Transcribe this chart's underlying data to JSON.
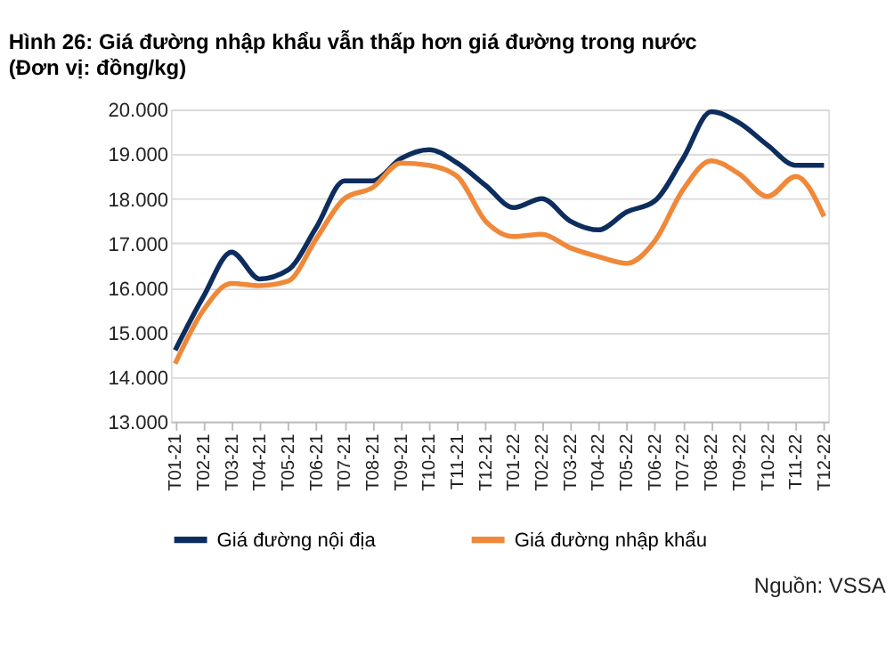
{
  "chart_data": {
    "type": "line",
    "title": "Hình 26: Giá đường nhập khẩu vẫn thấp hơn giá đường trong nước",
    "subtitle": "(Đơn vị: đồng/kg)",
    "categories": [
      "T01-21",
      "T02-21",
      "T03-21",
      "T04-21",
      "T05-21",
      "T06-21",
      "T07-21",
      "T08-21",
      "T09-21",
      "T10-21",
      "T11-21",
      "T12-21",
      "T01-22",
      "T02-22",
      "T03-22",
      "T04-22",
      "T05-22",
      "T06-22",
      "T07-22",
      "T08-22",
      "T09-22",
      "T10-22",
      "T11-22",
      "T12-22"
    ],
    "series": [
      {
        "name": "Giá đường nội địa",
        "color": "#0d2d5e",
        "values": [
          14600,
          15800,
          16800,
          16200,
          16400,
          17350,
          18400,
          18400,
          18900,
          19100,
          18800,
          18300,
          17800,
          18000,
          17500,
          17300,
          17700,
          17950,
          18900,
          19950,
          19700,
          19200,
          18750,
          18750
        ]
      },
      {
        "name": "Giá đường nhập khẩu",
        "color": "#f0883a",
        "values": [
          14300,
          15500,
          16100,
          16050,
          16150,
          17100,
          18000,
          18250,
          18800,
          18750,
          18500,
          17500,
          17150,
          17200,
          16900,
          16700,
          16550,
          17050,
          18200,
          18850,
          18550,
          18050,
          18500,
          17600
        ]
      }
    ],
    "ylim": [
      13000,
      20000
    ],
    "yticks": [
      {
        "value": 13000,
        "label": "13.000"
      },
      {
        "value": 14000,
        "label": "14.000"
      },
      {
        "value": 15000,
        "label": "15.000"
      },
      {
        "value": 16000,
        "label": "16.000"
      },
      {
        "value": 17000,
        "label": "17.000"
      },
      {
        "value": 18000,
        "label": "18.000"
      },
      {
        "value": 19000,
        "label": "19.000"
      },
      {
        "value": 20000,
        "label": "20.000"
      }
    ],
    "grid": "y",
    "legend": "bottom",
    "marker": "none",
    "line_style": "solid",
    "annotations": [
      "Nguồn: VSSA"
    ]
  }
}
